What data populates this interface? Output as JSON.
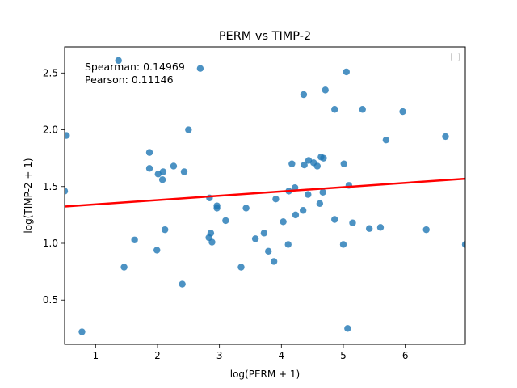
{
  "chart_data": {
    "type": "scatter",
    "title": "PERM vs TIMP-2",
    "xlabel": "log(PERM + 1)",
    "ylabel": "log(TIMP-2 + 1)",
    "xlim": [
      0.5,
      6.97
    ],
    "ylim": [
      0.11,
      2.73
    ],
    "x_ticks": [
      {
        "value": 1,
        "label": "1"
      },
      {
        "value": 2,
        "label": "2"
      },
      {
        "value": 3,
        "label": "3"
      },
      {
        "value": 4,
        "label": "4"
      },
      {
        "value": 5,
        "label": "5"
      },
      {
        "value": 6,
        "label": "6"
      }
    ],
    "y_ticks": [
      {
        "value": 0.5,
        "label": "0.5"
      },
      {
        "value": 1.0,
        "label": "1.0"
      },
      {
        "value": 1.5,
        "label": "1.5"
      },
      {
        "value": 2.0,
        "label": "2.0"
      },
      {
        "value": 2.5,
        "label": "2.5"
      }
    ],
    "grid": false,
    "legend": {
      "placement": "upper right",
      "entries": []
    },
    "annotations": [
      "Spearman: 0.14969",
      "Pearson: 0.11146"
    ],
    "colors": {
      "points": "#1f77b4",
      "fit_line": "#ff0000"
    },
    "fit_line": {
      "x": [
        0.5,
        6.97
      ],
      "y": [
        1.324,
        1.569
      ]
    },
    "points": [
      [
        0.5,
        1.46
      ],
      [
        0.53,
        1.95
      ],
      [
        0.78,
        0.22
      ],
      [
        1.37,
        2.61
      ],
      [
        1.46,
        0.79
      ],
      [
        1.63,
        1.03
      ],
      [
        1.87,
        1.8
      ],
      [
        1.87,
        1.66
      ],
      [
        1.99,
        0.94
      ],
      [
        2.01,
        1.61
      ],
      [
        2.08,
        1.56
      ],
      [
        2.09,
        1.63
      ],
      [
        2.12,
        1.12
      ],
      [
        2.26,
        1.68
      ],
      [
        2.4,
        0.64
      ],
      [
        2.43,
        1.63
      ],
      [
        2.5,
        2.0
      ],
      [
        2.69,
        2.54
      ],
      [
        2.83,
        1.05
      ],
      [
        2.84,
        1.4
      ],
      [
        2.86,
        1.09
      ],
      [
        2.88,
        1.01
      ],
      [
        2.96,
        1.33
      ],
      [
        2.96,
        1.31
      ],
      [
        3.1,
        1.2
      ],
      [
        3.35,
        0.79
      ],
      [
        3.43,
        1.31
      ],
      [
        3.58,
        1.04
      ],
      [
        3.72,
        1.09
      ],
      [
        3.79,
        0.93
      ],
      [
        3.88,
        0.84
      ],
      [
        3.91,
        1.39
      ],
      [
        4.03,
        1.19
      ],
      [
        4.11,
        0.99
      ],
      [
        4.12,
        1.46
      ],
      [
        4.17,
        1.7
      ],
      [
        4.22,
        1.49
      ],
      [
        4.23,
        1.25
      ],
      [
        4.35,
        1.29
      ],
      [
        4.36,
        2.31
      ],
      [
        4.37,
        1.69
      ],
      [
        4.43,
        1.43
      ],
      [
        4.44,
        1.73
      ],
      [
        4.52,
        1.71
      ],
      [
        4.58,
        1.68
      ],
      [
        4.62,
        1.35
      ],
      [
        4.64,
        1.76
      ],
      [
        4.67,
        1.45
      ],
      [
        4.68,
        1.75
      ],
      [
        4.71,
        2.35
      ],
      [
        4.86,
        2.18
      ],
      [
        4.86,
        1.21
      ],
      [
        5.0,
        0.99
      ],
      [
        5.01,
        1.7
      ],
      [
        5.05,
        2.51
      ],
      [
        5.07,
        0.25
      ],
      [
        5.09,
        1.51
      ],
      [
        5.15,
        1.18
      ],
      [
        5.31,
        2.18
      ],
      [
        5.42,
        1.13
      ],
      [
        5.6,
        1.14
      ],
      [
        5.69,
        1.91
      ],
      [
        5.96,
        2.16
      ],
      [
        6.34,
        1.12
      ],
      [
        6.65,
        1.94
      ],
      [
        6.97,
        0.99
      ]
    ]
  }
}
